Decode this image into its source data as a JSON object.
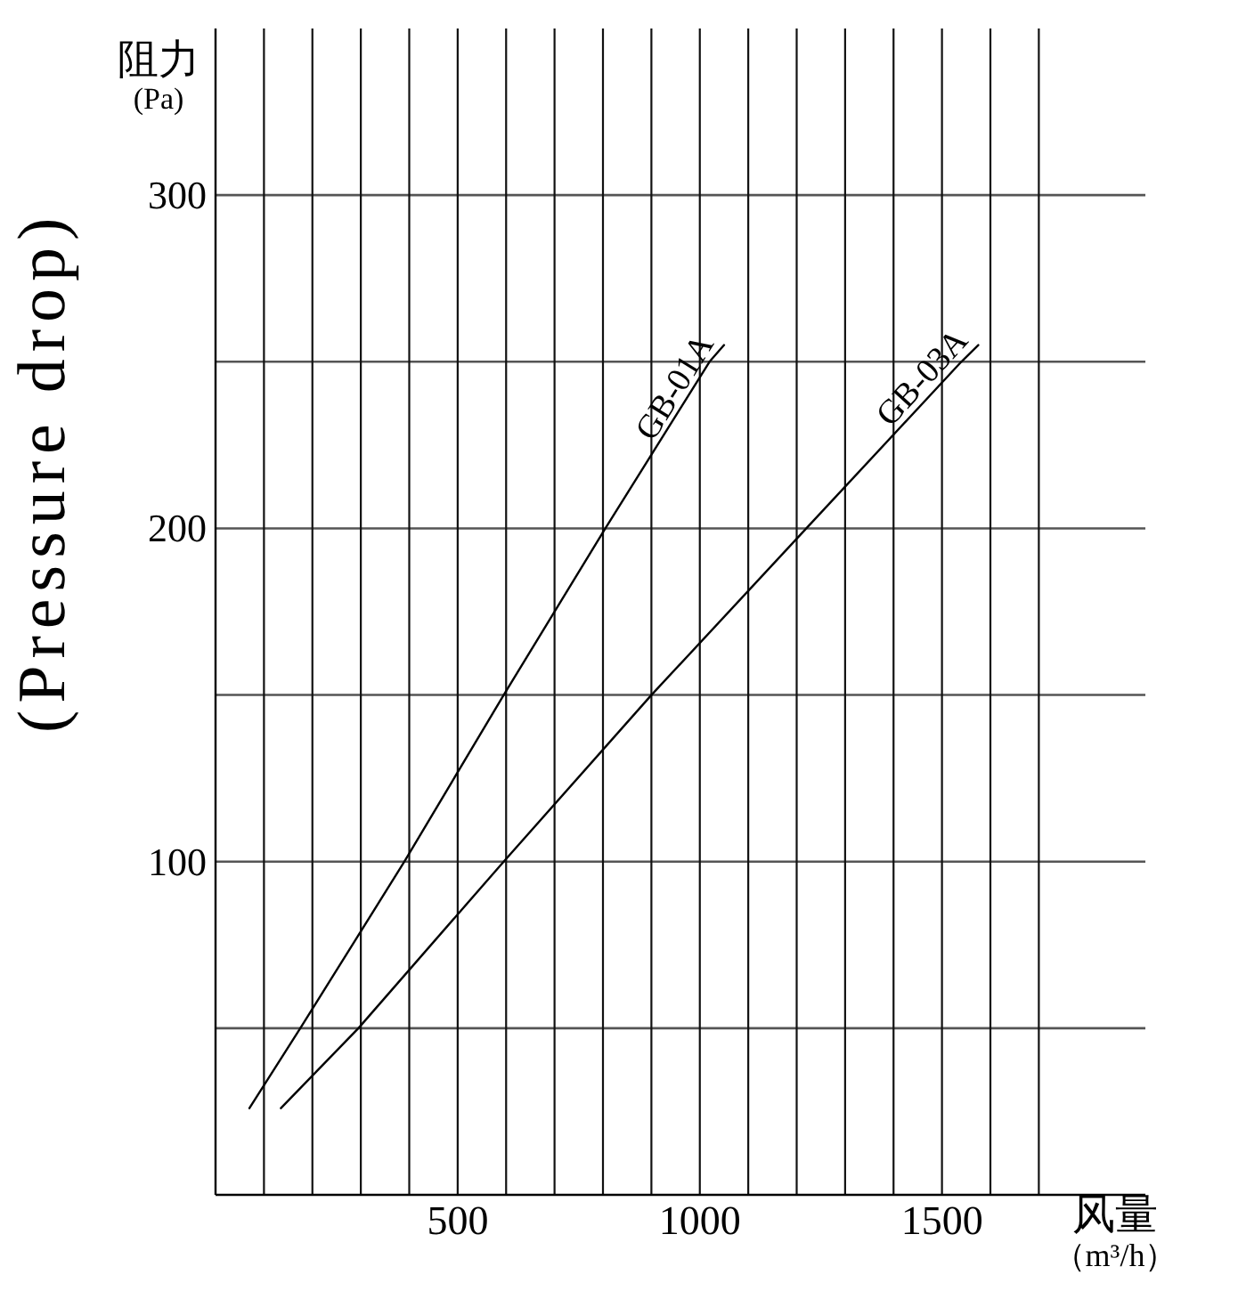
{
  "chart_data": {
    "type": "line",
    "xlabel": "风量（m³/h）",
    "ylabel": "阻力\n(Pa)",
    "annotations": [
      "(Pressure drop)"
    ],
    "series": [
      {
        "name": "GB-01A",
        "color": "#000000",
        "x": [
          70,
          175,
          390,
          595,
          805,
          1020,
          1050
        ],
        "values": [
          26,
          50,
          100,
          150,
          200,
          250,
          255
        ]
      },
      {
        "name": "GB-03A",
        "color": "#000000",
        "x": [
          135,
          295,
          595,
          900,
          1220,
          1540,
          1575
        ],
        "values": [
          26,
          50,
          100,
          150,
          200,
          250,
          255
        ]
      }
    ],
    "xlim": [
      0,
      1920
    ],
    "ylim": [
      0,
      350
    ],
    "xticks": [
      {
        "value": 100,
        "label": null
      },
      {
        "value": 200,
        "label": null
      },
      {
        "value": 300,
        "label": null
      },
      {
        "value": 400,
        "label": null
      },
      500,
      {
        "value": 600,
        "label": null
      },
      {
        "value": 700,
        "label": null
      },
      {
        "value": 800,
        "label": null
      },
      {
        "value": 900,
        "label": null
      },
      1000,
      {
        "value": 1100,
        "label": null
      },
      {
        "value": 1200,
        "label": null
      },
      {
        "value": 1300,
        "label": null
      },
      {
        "value": 1400,
        "label": null
      },
      1500,
      {
        "value": 1600,
        "label": null
      },
      {
        "value": 1700,
        "label": null
      }
    ],
    "yticks": [
      {
        "value": 50,
        "label": null
      },
      100,
      {
        "value": 150,
        "label": null
      },
      200,
      {
        "value": 250,
        "label": null
      },
      300
    ],
    "grid": true
  }
}
